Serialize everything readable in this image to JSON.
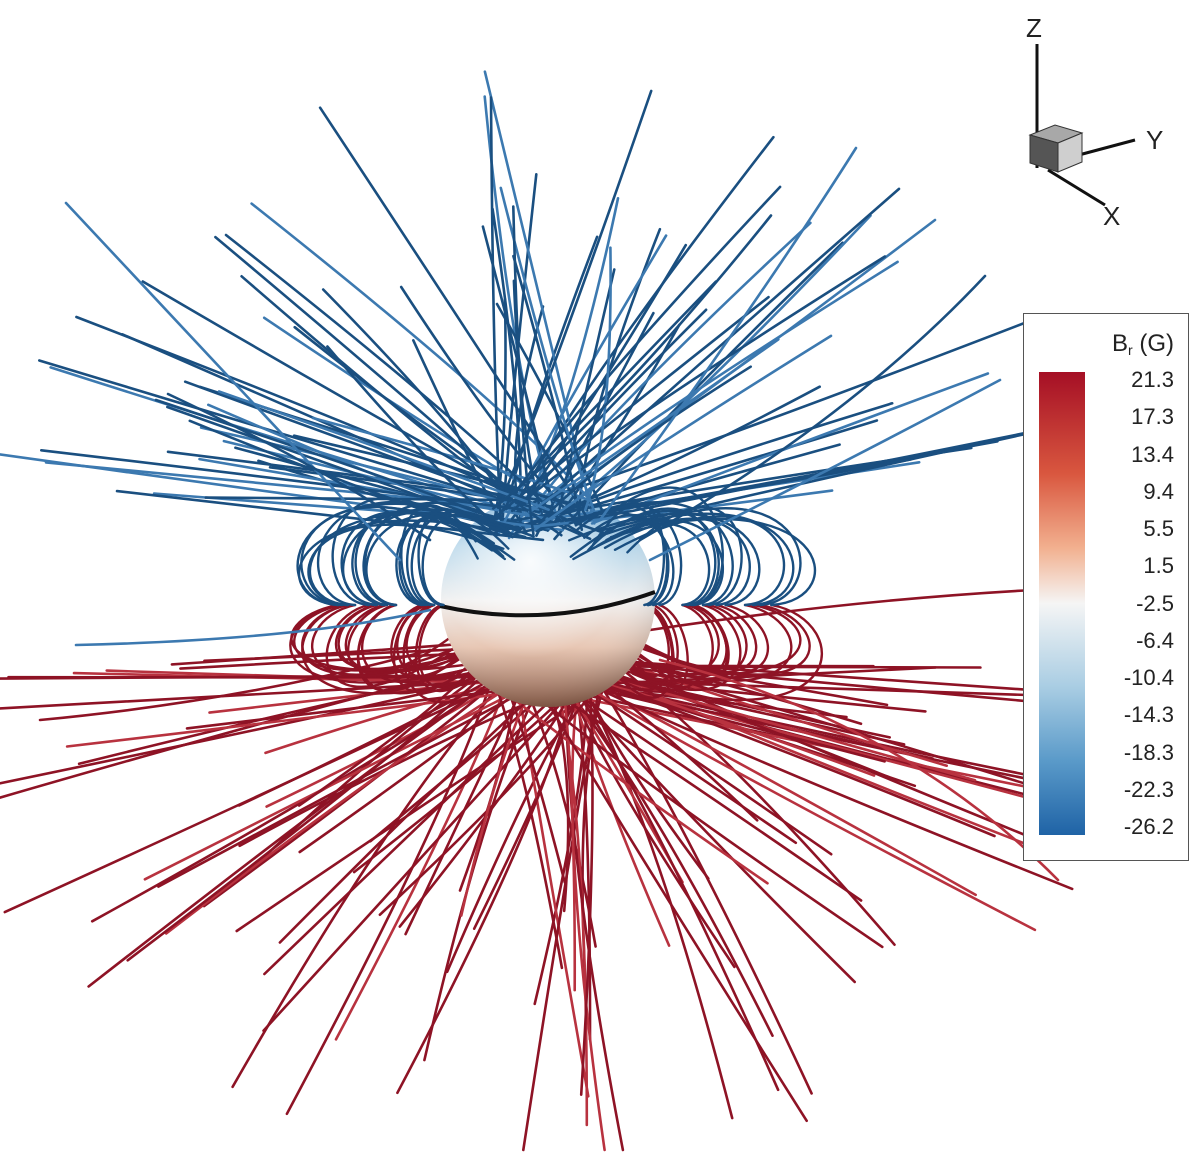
{
  "colorbar": {
    "variable": "B",
    "subscript": "r",
    "unit": "(G)",
    "ticks": [
      "21.3",
      "17.3",
      "13.4",
      "9.4",
      "5.5",
      "1.5",
      "-2.5",
      "-6.4",
      "-10.4",
      "-14.3",
      "-18.3",
      "-22.3",
      "-26.2"
    ],
    "colors": {
      "max": "#a50f25",
      "mid": "#f5f5f5",
      "min": "#1f63a6"
    }
  },
  "axes": {
    "z": "Z",
    "y": "Y",
    "x": "X"
  },
  "field_line_colors": {
    "north": "#1a4f80",
    "north_light": "#3c79b0",
    "south": "#8e1325",
    "south_light": "#b8323f"
  }
}
